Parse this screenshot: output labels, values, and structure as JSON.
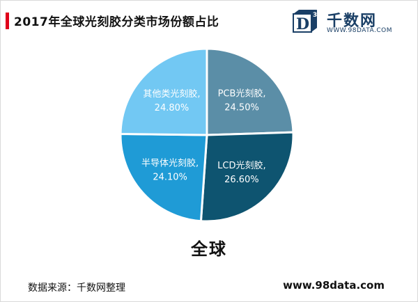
{
  "header": {
    "title": "2017年全球光刻胶分类市场份额占比",
    "accent_color": "#e0001b"
  },
  "logo": {
    "icon": "d3-cube-icon",
    "name": "千数网",
    "url": "WWW.98DATA.COM",
    "color": "#1a3f66"
  },
  "chart_data": {
    "type": "pie",
    "title": "2017年全球光刻胶分类市场份额占比",
    "caption": "全球",
    "slices": [
      {
        "label": "PCB光刻胶,",
        "value": 24.5,
        "value_label": "24.50%",
        "color": "#5b8ea7"
      },
      {
        "label": "LCD光刻胶,",
        "value": 26.6,
        "value_label": "26.60%",
        "color": "#0e5470"
      },
      {
        "label": "半导体光刻胶,",
        "value": 24.1,
        "value_label": "24.10%",
        "color": "#1f9bd6"
      },
      {
        "label": "其他类光刻胶,",
        "value": 24.8,
        "value_label": "24.80%",
        "color": "#72c8f3"
      }
    ],
    "start_angle_deg": 0,
    "direction": "clockwise"
  },
  "footer": {
    "source": "数据来源：千数网整理",
    "site": "www.98data.com"
  }
}
